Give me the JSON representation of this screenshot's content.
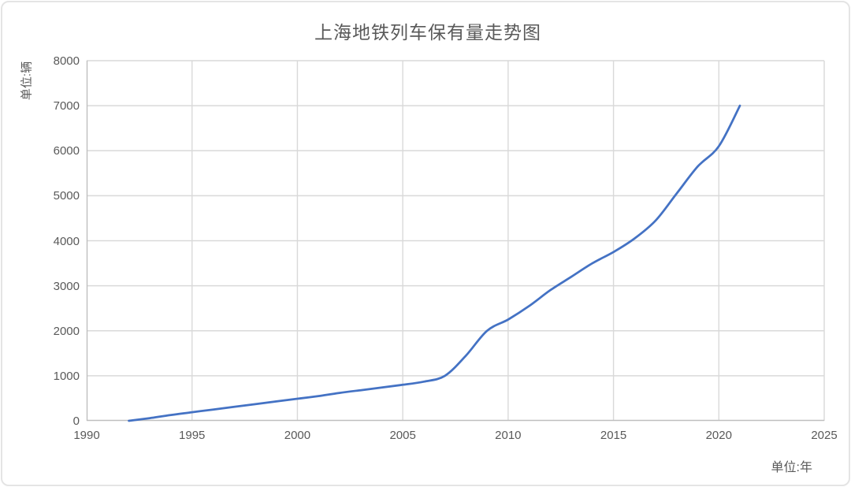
{
  "chart_data": {
    "type": "line",
    "title": "上海地铁列车保有量走势图",
    "y_unit_label": "单位:辆",
    "x_unit_label": "单位:年",
    "x": [
      1992,
      1993,
      1994,
      1995,
      1996,
      1997,
      1998,
      1999,
      2000,
      2001,
      2002,
      2003,
      2004,
      2005,
      2006,
      2007,
      2008,
      2009,
      2010,
      2011,
      2012,
      2013,
      2014,
      2015,
      2016,
      2017,
      2018,
      2019,
      2020,
      2021
    ],
    "values": [
      0,
      60,
      130,
      190,
      250,
      310,
      370,
      430,
      490,
      550,
      620,
      680,
      740,
      800,
      870,
      1000,
      1450,
      2000,
      2250,
      2550,
      2900,
      3200,
      3500,
      3750,
      4050,
      4450,
      5050,
      5650,
      6100,
      7000
    ],
    "xlim": [
      1990,
      2025
    ],
    "ylim": [
      0,
      8000
    ],
    "x_ticks": [
      1990,
      1995,
      2000,
      2005,
      2010,
      2015,
      2020,
      2025
    ],
    "y_ticks": [
      0,
      1000,
      2000,
      3000,
      4000,
      5000,
      6000,
      7000,
      8000
    ],
    "grid": true,
    "legend": "none",
    "line_color": "#4472c4",
    "gridline_color": "#d9d9d9",
    "axis_color": "#bfbfbf",
    "text_color": "#595959"
  }
}
